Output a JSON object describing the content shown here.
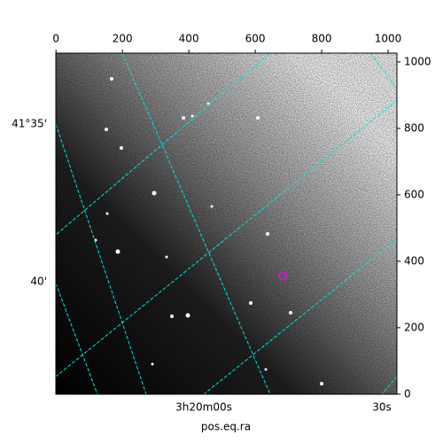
{
  "chart_data": {
    "type": "image",
    "xlabel": "pos.eq.ra",
    "xlim": [
      -0.5,
      1026.5
    ],
    "ylim": [
      -0.5,
      1026.5
    ],
    "xticks": [
      0,
      200,
      400,
      600,
      800,
      1000
    ],
    "yticks": [
      0,
      200,
      400,
      600,
      800,
      1000
    ],
    "dec_labels": [
      "41°35'",
      "40'"
    ],
    "ra_labels": [
      "3h20m00s",
      "30s"
    ],
    "markers": {
      "x": [
        683
      ],
      "y": [
        355
      ],
      "color": "#ff00ff"
    }
  }
}
